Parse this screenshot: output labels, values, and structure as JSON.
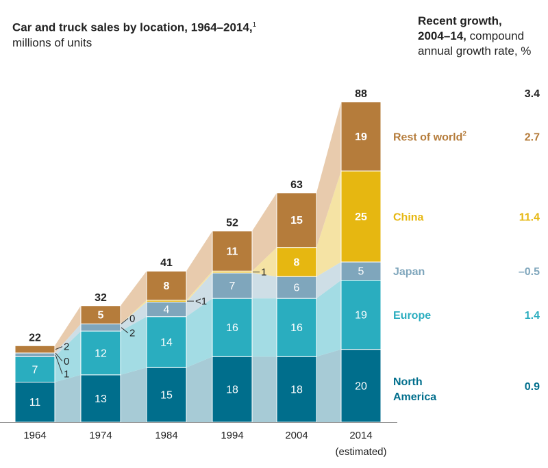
{
  "chart_data": {
    "type": "bar",
    "title": "Car and truck sales by location, 1964–2014,",
    "title_footnote": "1",
    "subtitle": "millions of units",
    "categories": [
      "1964",
      "1974",
      "1984",
      "1994",
      "2004",
      "2014"
    ],
    "category_sublabel": "(estimated)",
    "totals": [
      22,
      32,
      41,
      52,
      63,
      88
    ],
    "series": [
      {
        "name": "North America",
        "name_lines": [
          "North",
          "America"
        ],
        "color": "#006E8C",
        "band_color": "#A7CBD6",
        "values": [
          11,
          13,
          15,
          18,
          18,
          20
        ],
        "labels": [
          "11",
          "13",
          "15",
          "18",
          "18",
          "20"
        ],
        "growth": "0.9"
      },
      {
        "name": "Europe",
        "color": "#2AADBF",
        "band_color": "#A3DCE4",
        "values": [
          7,
          12,
          14,
          16,
          16,
          19
        ],
        "labels": [
          "7",
          "12",
          "14",
          "16",
          "16",
          "19"
        ],
        "growth": "1.4"
      },
      {
        "name": "Japan",
        "color": "#7FA6BC",
        "band_color": "#CEDEE6",
        "values": [
          1,
          2,
          4,
          7,
          6,
          5
        ],
        "labels": [
          "1",
          "2",
          "4",
          "7",
          "6",
          "5"
        ],
        "growth": "–0.5"
      },
      {
        "name": "China",
        "color": "#E6B711",
        "band_color": "#F5E3A4",
        "values": [
          0,
          0,
          0.5,
          0.5,
          8,
          25
        ],
        "labels": [
          "0",
          "0",
          "<1",
          "1",
          "8",
          "25"
        ],
        "growth": "11.4"
      },
      {
        "name": "Rest of world",
        "name_footnote": "2",
        "color": "#B57C3B",
        "band_color": "#E8CBAD",
        "values": [
          2,
          5,
          8,
          11,
          15,
          19
        ],
        "labels": [
          "2",
          "5",
          "8",
          "11",
          "15",
          "19"
        ],
        "growth": "2.7"
      }
    ],
    "total_growth": "3.4",
    "growth_header": {
      "line1": "Recent growth,",
      "line2_bold": "2004–14,",
      "line2_rest": " compound",
      "line3": "annual growth rate, %"
    },
    "ylim": [
      0,
      92
    ]
  }
}
